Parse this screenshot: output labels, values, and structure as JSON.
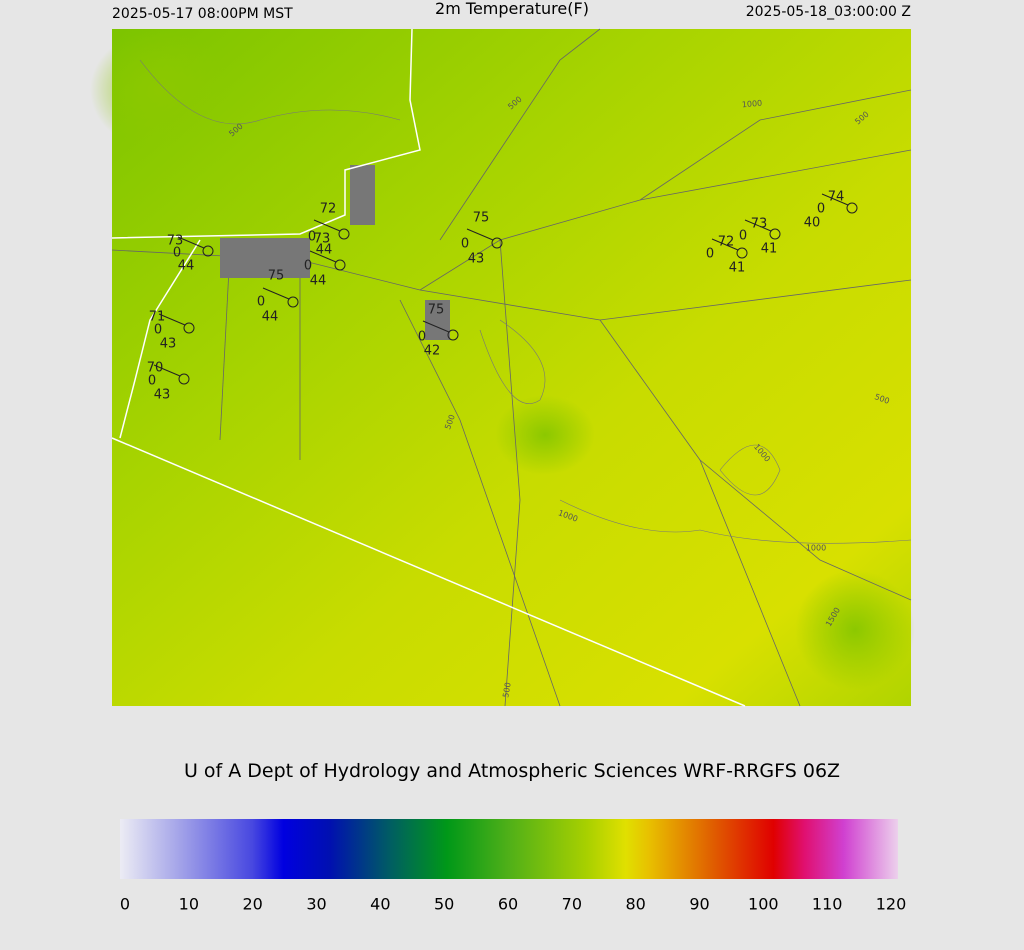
{
  "header": {
    "left": "2025-05-17 08:00PM MST",
    "title": "2m Temperature(F)",
    "right": "2025-05-18_03:00:00 Z"
  },
  "stations": [
    {
      "temp": "73",
      "mid": "0",
      "dew": "44"
    },
    {
      "temp": "72",
      "mid": "0",
      "dew": "44"
    },
    {
      "temp": "73",
      "mid": "0",
      "dew": "44"
    },
    {
      "temp": "75",
      "mid": "0",
      "dew": "44"
    },
    {
      "temp": "71",
      "mid": "0",
      "dew": "43"
    },
    {
      "temp": "70",
      "mid": "0",
      "dew": "43"
    },
    {
      "temp": "75",
      "mid": "0",
      "dew": "42"
    },
    {
      "temp": "75",
      "mid": "0",
      "dew": "43"
    },
    {
      "temp": "72",
      "mid": "0",
      "dew": "41"
    },
    {
      "temp": "73",
      "mid": "0",
      "dew": "41"
    },
    {
      "temp": "74",
      "mid": "0",
      "dew": "40"
    }
  ],
  "contour_labels": [
    "500",
    "500",
    "1000",
    "500",
    "500",
    "500",
    "1000",
    "1000",
    "1000",
    "1500",
    "500"
  ],
  "footer": "U of A Dept of Hydrology and Atmospheric Sciences WRF-RRGFS 06Z",
  "colorbar": {
    "xlim": [
      0,
      120
    ],
    "ticks": [
      0,
      10,
      20,
      30,
      40,
      50,
      60,
      70,
      80,
      90,
      100,
      110,
      120
    ]
  }
}
